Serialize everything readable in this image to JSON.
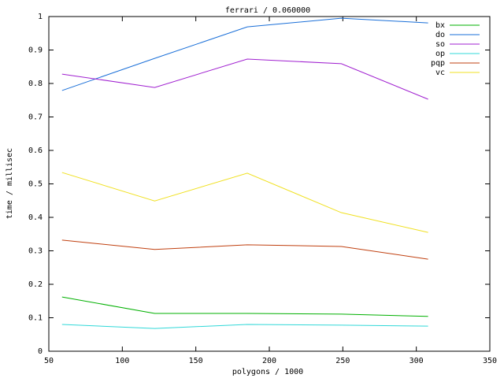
{
  "chart_data": {
    "type": "line",
    "title": "ferrari / 0.060000",
    "x_label": "polygons / 1000",
    "y_label": "time / millisec",
    "x": [
      59,
      122,
      185,
      249,
      308
    ],
    "series": [
      {
        "name": "bx",
        "color": "#00b000",
        "values": [
          0.162,
          0.113,
          0.113,
          0.111,
          0.104
        ]
      },
      {
        "name": "do",
        "color": "#1a6fd8",
        "values": [
          0.779,
          0.875,
          0.969,
          0.995,
          0.981
        ]
      },
      {
        "name": "so",
        "color": "#a020d0",
        "values": [
          0.828,
          0.788,
          0.873,
          0.859,
          0.753
        ]
      },
      {
        "name": "op",
        "color": "#30d8d8",
        "values": [
          0.08,
          0.068,
          0.08,
          0.078,
          0.075
        ]
      },
      {
        "name": "pqp",
        "color": "#c04010",
        "values": [
          0.332,
          0.304,
          0.318,
          0.313,
          0.275
        ]
      },
      {
        "name": "vc",
        "color": "#f0e020",
        "values": [
          0.534,
          0.449,
          0.532,
          0.414,
          0.355
        ]
      }
    ],
    "xlim": [
      50,
      350
    ],
    "xticks": [
      50,
      100,
      150,
      200,
      250,
      300,
      350
    ],
    "ylim": [
      0,
      1
    ],
    "yticks": [
      0,
      0.1,
      0.2,
      0.3,
      0.4,
      0.5,
      0.6,
      0.7,
      0.8,
      0.9,
      1
    ],
    "legend": "top-right"
  }
}
